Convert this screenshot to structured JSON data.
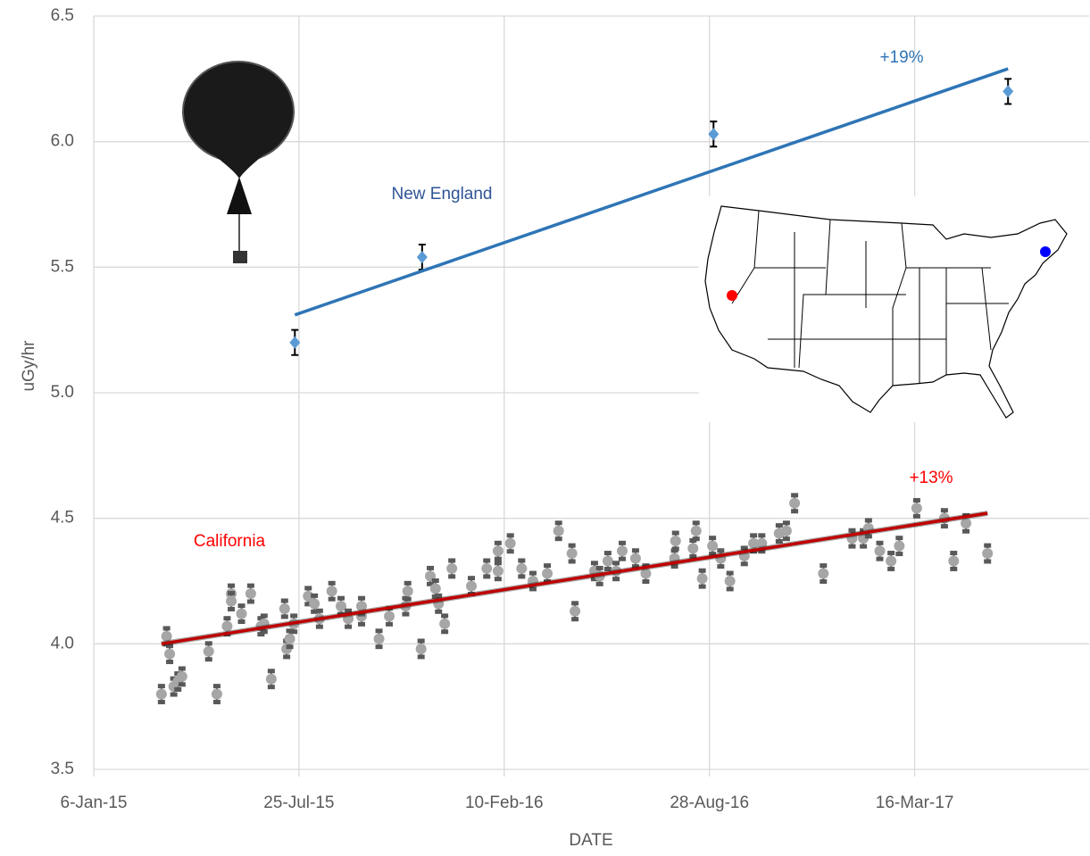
{
  "chart_data": {
    "type": "scatter",
    "x_label": "DATE",
    "y_label": "uGy/hr",
    "xlim": [
      42010,
      42980
    ],
    "xticks": [
      {
        "value": 42010,
        "label": "6-Jan-15"
      },
      {
        "value": 42210,
        "label": "25-Jul-15"
      },
      {
        "value": 42410,
        "label": "10-Feb-16"
      },
      {
        "value": 42610,
        "label": "28-Aug-16"
      },
      {
        "value": 42810,
        "label": "16-Mar-17"
      }
    ],
    "ylim": [
      3.5,
      6.5
    ],
    "yticks": [
      3.5,
      {
        "value": 4,
        "label": "4.0"
      },
      4.5,
      {
        "value": 5,
        "label": "5.0"
      },
      5.5,
      {
        "value": 6,
        "label": "6.0"
      },
      6.5
    ],
    "grid": true,
    "series": [
      {
        "marker": "diamond",
        "color": "#5b9bd5",
        "error_color": "#000000",
        "error": 0.05,
        "x": [
          42206,
          42330,
          42614,
          42901
        ],
        "values": [
          5.2,
          5.54,
          6.03,
          6.2
        ],
        "trend": {
          "color": "#2e75b6",
          "x": [
            42206,
            42901
          ],
          "values": [
            5.31,
            6.29
          ]
        }
      },
      {
        "marker": "circle",
        "color": "#a6a6a6",
        "error_color": "#595959",
        "error": 0.03,
        "x": [
          42076,
          42081,
          42084,
          42088,
          42092,
          42096,
          42122,
          42130,
          42140,
          42144,
          42144,
          42154,
          42163,
          42173,
          42176,
          42183,
          42196,
          42198,
          42201,
          42205,
          42219,
          42225,
          42230,
          42242,
          42251,
          42258,
          42271,
          42271,
          42288,
          42298,
          42314,
          42316,
          42329,
          42338,
          42343,
          42346,
          42352,
          42359,
          42378,
          42393,
          42404,
          42404,
          42416,
          42427,
          42438,
          42452,
          42463,
          42476,
          42479,
          42498,
          42503,
          42511,
          42519,
          42525,
          42538,
          42548,
          42576,
          42577,
          42594,
          42597,
          42603,
          42613,
          42621,
          42630,
          42644,
          42653,
          42661,
          42678,
          42685,
          42693,
          42721,
          42749,
          42760,
          42765,
          42776,
          42787,
          42795,
          42812,
          42839,
          42848,
          42860,
          42881
        ],
        "values": [
          3.8,
          4.03,
          3.96,
          3.83,
          3.85,
          3.87,
          3.97,
          3.8,
          4.07,
          4.2,
          4.17,
          4.12,
          4.2,
          4.07,
          4.08,
          3.86,
          4.14,
          3.98,
          4.02,
          4.08,
          4.19,
          4.16,
          4.1,
          4.21,
          4.15,
          4.1,
          4.11,
          4.15,
          4.02,
          4.11,
          4.15,
          4.21,
          3.98,
          4.27,
          4.22,
          4.16,
          4.08,
          4.3,
          4.23,
          4.3,
          4.37,
          4.29,
          4.4,
          4.3,
          4.25,
          4.28,
          4.45,
          4.36,
          4.13,
          4.29,
          4.27,
          4.33,
          4.29,
          4.37,
          4.34,
          4.28,
          4.34,
          4.41,
          4.38,
          4.45,
          4.26,
          4.39,
          4.34,
          4.25,
          4.35,
          4.4,
          4.4,
          4.44,
          4.45,
          4.56,
          4.28,
          4.42,
          4.42,
          4.46,
          4.37,
          4.33,
          4.39,
          4.54,
          4.5,
          4.33,
          4.48,
          4.36
        ],
        "trend": {
          "color": "#c00000",
          "x": [
            42076,
            42881
          ],
          "values": [
            4.0,
            4.52
          ]
        }
      }
    ],
    "annotations": [
      {
        "text": "+19%",
        "color": "#2e75b6"
      },
      {
        "text": "New England",
        "color": "#2f5597"
      },
      {
        "text": "+13%",
        "color": "#ff0000"
      },
      {
        "text": "California",
        "color": "#ff0000"
      }
    ]
  }
}
